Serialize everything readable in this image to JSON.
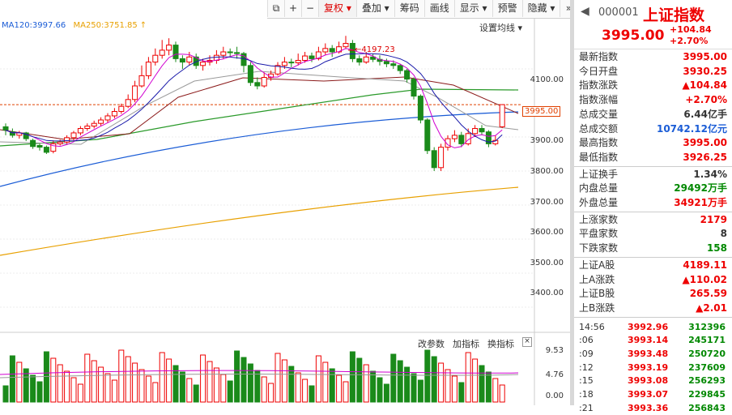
{
  "toolbar": {
    "icons": [
      "window-icon",
      "plus-icon",
      "minus-icon"
    ],
    "buttons": [
      {
        "label": "复权 ▾",
        "active": true
      },
      {
        "label": "叠加 ▾",
        "active": false
      },
      {
        "label": "筹码",
        "active": false
      },
      {
        "label": "画线",
        "active": false
      },
      {
        "label": "显示 ▾",
        "active": false
      },
      {
        "label": "预警",
        "active": false
      },
      {
        "label": "隐藏 ▾",
        "active": false
      }
    ],
    "expand_icon": "double-chevron-right-icon"
  },
  "ma_legend": {
    "ma120": "MA120:3997.66",
    "ma250": "MA250:3751.85",
    "arrow": "↑"
  },
  "settings_label": "设置均线 ▾",
  "y_axis": [
    "4100.00",
    "3900.00",
    "3800.00",
    "3700.00",
    "3600.00",
    "3500.00",
    "3400.00"
  ],
  "current_price_tag": "3995.00",
  "peak_label": "←4197.23",
  "sub_toolbar": {
    "labels": [
      "改参数",
      "加指标",
      "换指标"
    ],
    "close": "×"
  },
  "sub_y_axis": [
    "9.53",
    "4.76",
    "0.00"
  ],
  "quote": {
    "back_icon": "arrow-left-icon",
    "code": "000001",
    "name": "上证指数",
    "price": "3995.00",
    "change": "+104.84",
    "change_pct": "+2.70%"
  },
  "stats_group1": [
    {
      "label": "最新指数",
      "value": "3995.00",
      "color": "red"
    },
    {
      "label": "今日开盘",
      "value": "3930.25",
      "color": "red"
    },
    {
      "label": "指数涨跌",
      "value": "▲104.84",
      "color": "red"
    },
    {
      "label": "指数涨幅",
      "value": "+2.70%",
      "color": "red"
    },
    {
      "label": "总成交量",
      "value": "6.44亿手",
      "color": "dark"
    },
    {
      "label": "总成交额",
      "value": "10742.12亿元",
      "color": "blue"
    },
    {
      "label": "最高指数",
      "value": "3995.00",
      "color": "red"
    },
    {
      "label": "最低指数",
      "value": "3926.25",
      "color": "red"
    }
  ],
  "stats_group2": [
    {
      "label": "上证换手",
      "value": "1.34%",
      "color": "dark"
    },
    {
      "label": "内盘总量",
      "value": "29492万手",
      "color": "green"
    },
    {
      "label": "外盘总量",
      "value": "34921万手",
      "color": "red"
    }
  ],
  "stats_group3": [
    {
      "label": "上涨家数",
      "value": "2179",
      "color": "red"
    },
    {
      "label": "平盘家数",
      "value": "8",
      "color": "dark"
    },
    {
      "label": "下跌家数",
      "value": "158",
      "color": "green"
    }
  ],
  "stats_group4": [
    {
      "label": "上证A股",
      "value": "4189.11",
      "color": "red"
    },
    {
      "label": "上A涨跌",
      "value": "▲110.02",
      "color": "red"
    },
    {
      "label": "上证B股",
      "value": "265.59",
      "color": "red"
    },
    {
      "label": "上B涨跌",
      "value": "▲2.01",
      "color": "red"
    }
  ],
  "ticks": [
    {
      "time": "14:56",
      "price": "3992.96",
      "vol": "312396"
    },
    {
      "time": ":06",
      "price": "3993.14",
      "vol": "245171"
    },
    {
      "time": ":09",
      "price": "3993.48",
      "vol": "250720"
    },
    {
      "time": ":12",
      "price": "3993.19",
      "vol": "237609"
    },
    {
      "time": ":15",
      "price": "3993.08",
      "vol": "256293"
    },
    {
      "time": ":18",
      "price": "3993.07",
      "vol": "229845"
    },
    {
      "time": ":21",
      "price": "3993.36",
      "vol": "256843"
    }
  ],
  "chart_data": {
    "type": "candlestick",
    "ylim": [
      3350,
      4250
    ],
    "candles": [
      [
        3930,
        3920,
        3940,
        3905
      ],
      [
        3915,
        3905,
        3925,
        3898
      ],
      [
        3905,
        3912,
        3918,
        3895
      ],
      [
        3912,
        3895,
        3915,
        3888
      ],
      [
        3890,
        3872,
        3895,
        3865
      ],
      [
        3875,
        3870,
        3880,
        3860
      ],
      [
        3870,
        3855,
        3875,
        3850
      ],
      [
        3858,
        3880,
        3890,
        3852
      ],
      [
        3880,
        3885,
        3892,
        3875
      ],
      [
        3885,
        3898,
        3905,
        3880
      ],
      [
        3898,
        3912,
        3918,
        3890
      ],
      [
        3912,
        3925,
        3932,
        3905
      ],
      [
        3925,
        3932,
        3940,
        3918
      ],
      [
        3932,
        3940,
        3948,
        3925
      ],
      [
        3940,
        3950,
        3958,
        3932
      ],
      [
        3950,
        3962,
        3970,
        3942
      ],
      [
        3962,
        3975,
        3985,
        3955
      ],
      [
        3975,
        3990,
        3998,
        3968
      ],
      [
        3990,
        4010,
        4025,
        3985
      ],
      [
        4010,
        4050,
        4065,
        4002
      ],
      [
        4050,
        4080,
        4110,
        4045
      ],
      [
        4080,
        4120,
        4135,
        4070
      ],
      [
        4120,
        4140,
        4160,
        4110
      ],
      [
        4140,
        4155,
        4185,
        4130
      ],
      [
        4155,
        4170,
        4190,
        4140
      ],
      [
        4170,
        4130,
        4180,
        4120
      ],
      [
        4130,
        4120,
        4140,
        4100
      ],
      [
        4120,
        4135,
        4150,
        4110
      ],
      [
        4135,
        4110,
        4145,
        4100
      ],
      [
        4110,
        4120,
        4130,
        4095
      ],
      [
        4120,
        4125,
        4140,
        4110
      ],
      [
        4125,
        4140,
        4155,
        4115
      ],
      [
        4140,
        4150,
        4165,
        4130
      ],
      [
        4150,
        4148,
        4160,
        4135
      ],
      [
        4148,
        4145,
        4165,
        4130
      ],
      [
        4145,
        4110,
        4150,
        4090
      ],
      [
        4110,
        4060,
        4120,
        4050
      ],
      [
        4060,
        4050,
        4075,
        4040
      ],
      [
        4050,
        4075,
        4090,
        4045
      ],
      [
        4075,
        4085,
        4095,
        4065
      ],
      [
        4085,
        4110,
        4120,
        4080
      ],
      [
        4110,
        4120,
        4135,
        4100
      ],
      [
        4120,
        4118,
        4130,
        4105
      ],
      [
        4118,
        4125,
        4145,
        4110
      ],
      [
        4125,
        4138,
        4150,
        4118
      ],
      [
        4138,
        4130,
        4148,
        4120
      ],
      [
        4130,
        4150,
        4165,
        4125
      ],
      [
        4150,
        4160,
        4175,
        4140
      ],
      [
        4160,
        4150,
        4170,
        4135
      ],
      [
        4150,
        4165,
        4180,
        4145
      ],
      [
        4165,
        4175,
        4197,
        4158
      ],
      [
        4175,
        4130,
        4185,
        4120
      ],
      [
        4130,
        4120,
        4140,
        4110
      ],
      [
        4120,
        4135,
        4150,
        4115
      ],
      [
        4135,
        4128,
        4145,
        4120
      ],
      [
        4128,
        4122,
        4140,
        4110
      ],
      [
        4122,
        4115,
        4130,
        4105
      ],
      [
        4115,
        4110,
        4125,
        4100
      ],
      [
        4110,
        4095,
        4115,
        4085
      ],
      [
        4095,
        4070,
        4100,
        4060
      ],
      [
        4070,
        4020,
        4075,
        4010
      ],
      [
        4020,
        3950,
        4025,
        3940
      ],
      [
        3950,
        3860,
        3955,
        3850
      ],
      [
        3860,
        3810,
        3870,
        3800
      ],
      [
        3810,
        3870,
        3880,
        3800
      ],
      [
        3870,
        3895,
        3905,
        3860
      ],
      [
        3895,
        3905,
        3920,
        3885
      ],
      [
        3905,
        3880,
        3915,
        3870
      ],
      [
        3880,
        3910,
        3925,
        3875
      ],
      [
        3910,
        3925,
        3935,
        3900
      ],
      [
        3925,
        3915,
        3935,
        3905
      ],
      [
        3915,
        3880,
        3920,
        3870
      ],
      [
        3880,
        3890,
        3905,
        3875
      ],
      [
        3930,
        3995,
        3995,
        3926
      ]
    ]
  }
}
